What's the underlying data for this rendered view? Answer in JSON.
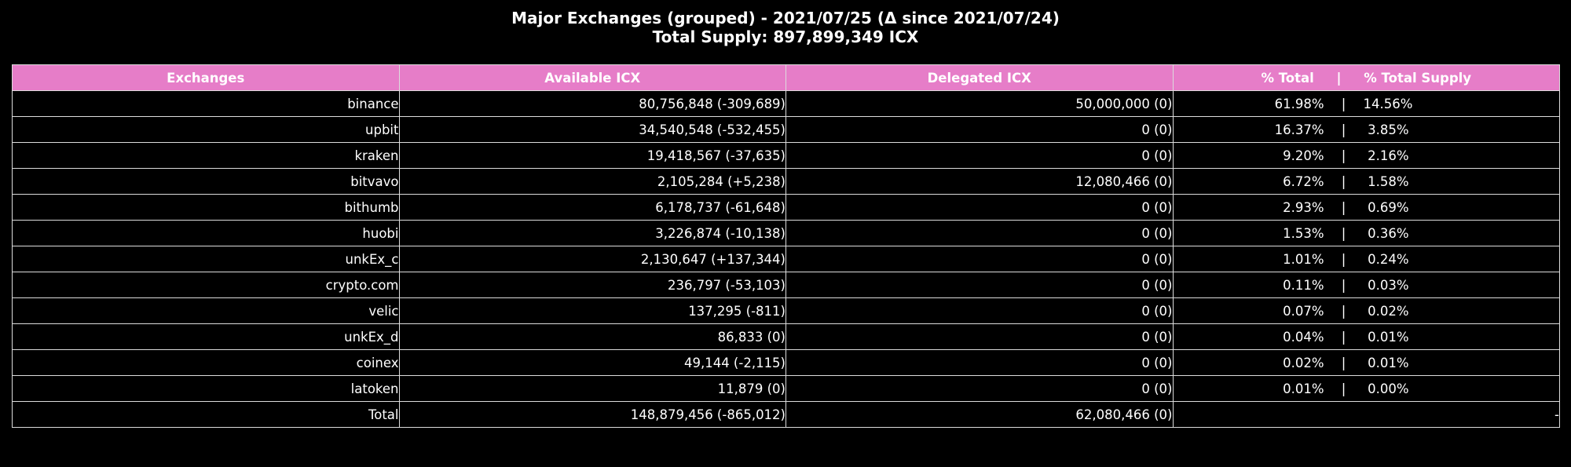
{
  "chart_data": {
    "type": "table",
    "title": "Major Exchanges (grouped) - 2021/07/25 (Δ since 2021/07/24)",
    "subtitle": "Total Supply: 897,899,349 ICX",
    "columns": [
      "Exchanges",
      "Available ICX",
      "Delegated ICX",
      "% Total     |     % Total Supply"
    ],
    "rows": [
      {
        "exchange": "binance",
        "available": "80,756,848 (-309,689)",
        "delegated": "50,000,000 (0)",
        "pct_total": "61.98%",
        "pct_supply": "14.56%"
      },
      {
        "exchange": "upbit",
        "available": "34,540,548 (-532,455)",
        "delegated": "0 (0)",
        "pct_total": "16.37%",
        "pct_supply": "3.85%"
      },
      {
        "exchange": "kraken",
        "available": "19,418,567 (-37,635)",
        "delegated": "0 (0)",
        "pct_total": "9.20%",
        "pct_supply": "2.16%"
      },
      {
        "exchange": "bitvavo",
        "available": "2,105,284 (+5,238)",
        "delegated": "12,080,466 (0)",
        "pct_total": "6.72%",
        "pct_supply": "1.58%"
      },
      {
        "exchange": "bithumb",
        "available": "6,178,737 (-61,648)",
        "delegated": "0 (0)",
        "pct_total": "2.93%",
        "pct_supply": "0.69%"
      },
      {
        "exchange": "huobi",
        "available": "3,226,874 (-10,138)",
        "delegated": "0 (0)",
        "pct_total": "1.53%",
        "pct_supply": "0.36%"
      },
      {
        "exchange": "unkEx_c",
        "available": "2,130,647 (+137,344)",
        "delegated": "0 (0)",
        "pct_total": "1.01%",
        "pct_supply": "0.24%"
      },
      {
        "exchange": "crypto.com",
        "available": "236,797 (-53,103)",
        "delegated": "0 (0)",
        "pct_total": "0.11%",
        "pct_supply": "0.03%"
      },
      {
        "exchange": "velic",
        "available": "137,295 (-811)",
        "delegated": "0 (0)",
        "pct_total": "0.07%",
        "pct_supply": "0.02%"
      },
      {
        "exchange": "unkEx_d",
        "available": "86,833 (0)",
        "delegated": "0 (0)",
        "pct_total": "0.04%",
        "pct_supply": "0.01%"
      },
      {
        "exchange": "coinex",
        "available": "49,144 (-2,115)",
        "delegated": "0 (0)",
        "pct_total": "0.02%",
        "pct_supply": "0.01%"
      },
      {
        "exchange": "latoken",
        "available": "11,879 (0)",
        "delegated": "0 (0)",
        "pct_total": "0.01%",
        "pct_supply": "0.00%"
      }
    ],
    "total_row": {
      "exchange": "Total",
      "available": "148,879,456 (-865,012)",
      "delegated": "62,080,466 (0)",
      "pct": "-"
    },
    "pct_separator": "|",
    "colors": {
      "header_bg": "#e67dc8",
      "background": "#000000",
      "text": "#ffffff",
      "border": "#dcdcdc"
    }
  }
}
